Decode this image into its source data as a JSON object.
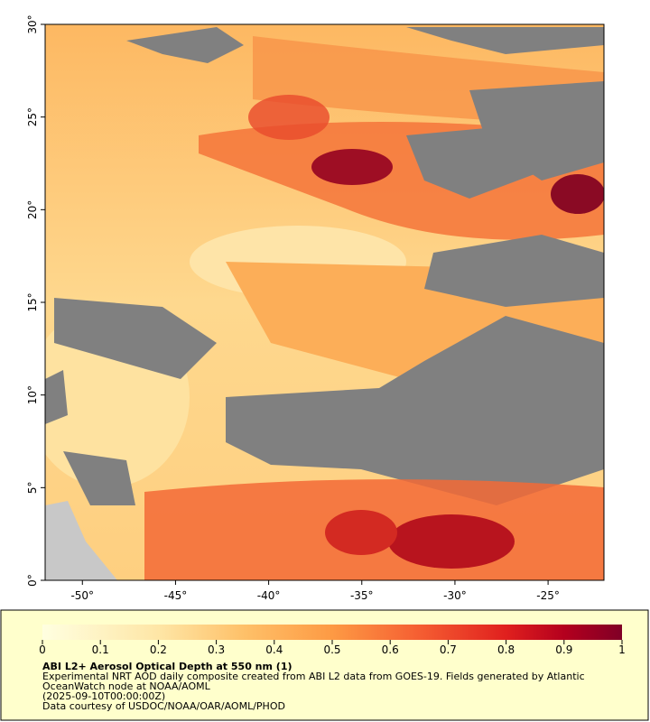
{
  "map": {
    "xlim": [
      -52,
      -22
    ],
    "ylim": [
      0,
      30
    ],
    "xticks": [
      {
        "value": -50,
        "label": "-50°"
      },
      {
        "value": -45,
        "label": "-45°"
      },
      {
        "value": -40,
        "label": "-40°"
      },
      {
        "value": -35,
        "label": "-35°"
      },
      {
        "value": -30,
        "label": "-30°"
      },
      {
        "value": -25,
        "label": "-25°"
      }
    ],
    "yticks": [
      {
        "value": 0,
        "label": "0°"
      },
      {
        "value": 5,
        "label": "5°"
      },
      {
        "value": 10,
        "label": "10°"
      },
      {
        "value": 15,
        "label": "15°"
      },
      {
        "value": 20,
        "label": "20°"
      },
      {
        "value": 25,
        "label": "25°"
      },
      {
        "value": 30,
        "label": "30°"
      }
    ]
  },
  "colorbar": {
    "range": [
      0,
      1
    ],
    "ticks": [
      0,
      0.1,
      0.2,
      0.3,
      0.4,
      0.5,
      0.6,
      0.7,
      0.8,
      0.9,
      1
    ]
  },
  "caption": {
    "title": "ABI L2+ Aerosol Optical Depth at 550 nm (1)",
    "lines": [
      "Experimental NRT AOD daily composite created from ABI L2 data from GOES-19. Fields generated by Atlantic",
      "OceanWatch node at NOAA/AOML",
      "(2025-09-10T00:00:00Z)",
      "Data courtesy of USDOC/NOAA/OAR/AOML/PHOD"
    ]
  }
}
